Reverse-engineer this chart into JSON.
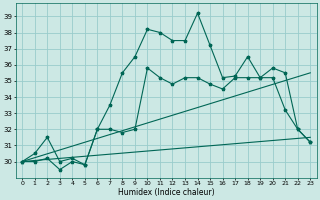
{
  "xlabel": "Humidex (Indice chaleur)",
  "bg_color": "#cce8e4",
  "grid_color": "#99cccc",
  "line_color": "#006655",
  "xlim": [
    -0.5,
    23.5
  ],
  "ylim": [
    29.0,
    39.8
  ],
  "yticks": [
    30,
    31,
    32,
    33,
    34,
    35,
    36,
    37,
    38,
    39
  ],
  "xticks": [
    0,
    1,
    2,
    3,
    4,
    5,
    6,
    7,
    8,
    9,
    10,
    11,
    12,
    13,
    14,
    15,
    16,
    17,
    18,
    19,
    20,
    21,
    22,
    23
  ],
  "xtick_labels": [
    "0",
    "1",
    "2",
    "3",
    "4",
    "5",
    "6",
    "7",
    "8",
    "9",
    "10",
    "11",
    "12",
    "13",
    "14",
    "15",
    "16",
    "17",
    "18",
    "19",
    "20",
    "21",
    "22",
    "23"
  ],
  "series1": [
    30.0,
    30.5,
    31.5,
    30.0,
    30.2,
    29.8,
    32.0,
    33.5,
    35.5,
    36.5,
    38.2,
    38.0,
    37.5,
    37.5,
    39.2,
    37.2,
    35.2,
    35.3,
    36.5,
    35.2,
    35.8,
    35.5,
    32.0,
    31.2
  ],
  "series2": [
    30.0,
    30.0,
    30.2,
    29.5,
    30.0,
    29.8,
    32.0,
    32.0,
    31.8,
    32.0,
    35.8,
    35.2,
    34.8,
    35.2,
    35.2,
    34.8,
    34.5,
    35.2,
    35.2,
    35.2,
    35.2,
    33.2,
    32.0,
    31.2
  ],
  "trend1": [
    30.0,
    31.5
  ],
  "trend2": [
    30.0,
    35.5
  ],
  "trend_x": [
    0,
    23
  ]
}
